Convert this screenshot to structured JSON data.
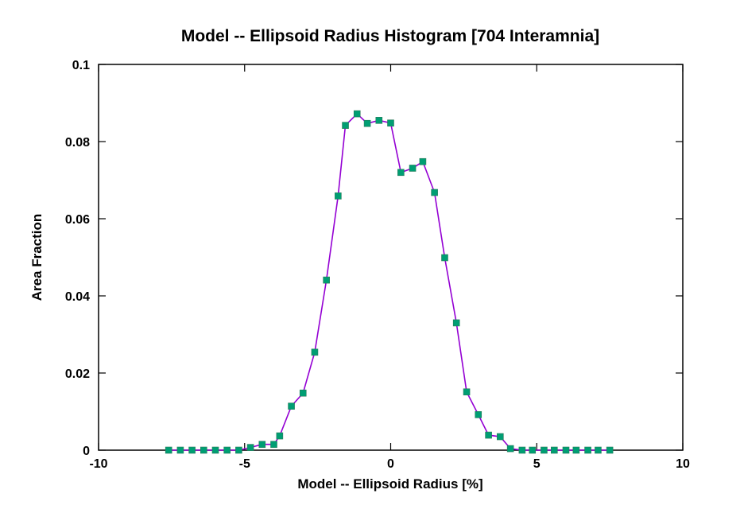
{
  "chart_data": {
    "type": "line",
    "title": "Model -- Ellipsoid Radius Histogram [704 Interamnia]",
    "xlabel": "Model -- Ellipsoid Radius [%]",
    "ylabel": "Area Fraction",
    "xlim": [
      -10,
      10
    ],
    "ylim": [
      0,
      0.1
    ],
    "xticks": [
      -10,
      -5,
      0,
      5,
      10
    ],
    "xtick_labels": [
      "-10",
      "-5",
      "0",
      "5",
      "10"
    ],
    "yticks": [
      0,
      0.02,
      0.04,
      0.06,
      0.08,
      0.1
    ],
    "ytick_labels": [
      "0",
      "0.02",
      "0.04",
      "0.06",
      "0.08",
      "0.1"
    ],
    "grid": false,
    "legend": "none",
    "colors": {
      "line": "#9400d3",
      "marker": "#009e73",
      "marker_edge": "#2a7a5a",
      "axis": "#000000"
    },
    "series": [
      {
        "x": [
          -7.6,
          -7.2,
          -6.8,
          -6.4,
          -6.0,
          -5.6,
          -5.2,
          -4.8,
          -4.4,
          -4.0,
          -3.8,
          -3.4,
          -3.0,
          -2.6,
          -2.2,
          -1.8,
          -1.55,
          -1.15,
          -0.8,
          -0.4,
          0.0,
          0.35,
          0.75,
          1.1,
          1.5,
          1.85,
          2.25,
          2.6,
          3.0,
          3.35,
          3.75,
          4.1,
          4.5,
          4.85,
          5.25,
          5.6,
          6.0,
          6.35,
          6.75,
          7.1,
          7.5
        ],
        "y": [
          0.0,
          0.0,
          0.0,
          0.0,
          0.0,
          0.0,
          0.0,
          0.0007,
          0.0015,
          0.0015,
          0.0037,
          0.0114,
          0.0148,
          0.0254,
          0.0441,
          0.0659,
          0.0842,
          0.0872,
          0.0847,
          0.0855,
          0.0848,
          0.072,
          0.0731,
          0.0748,
          0.0668,
          0.0499,
          0.033,
          0.0151,
          0.0092,
          0.0039,
          0.0035,
          0.0004,
          0.0,
          0.0,
          0.0,
          0.0,
          0.0,
          0.0,
          0.0,
          0.0,
          0.0
        ]
      }
    ]
  }
}
